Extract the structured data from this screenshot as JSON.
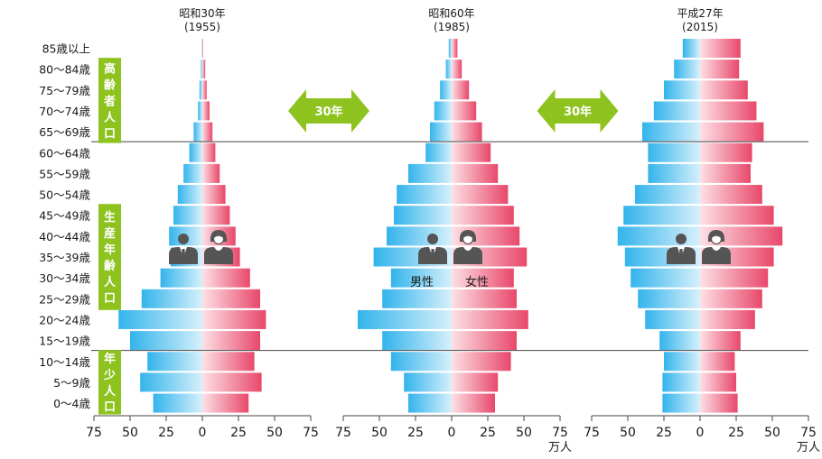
{
  "chart_data": {
    "type": "bar",
    "orientation": "horizontal-butterfly",
    "age_groups": [
      "85歳以上",
      "80〜84歳",
      "75〜79歳",
      "70〜74歳",
      "65〜69歳",
      "60〜64歳",
      "55〜59歳",
      "50〜54歳",
      "45〜49歳",
      "40〜44歳",
      "35〜39歳",
      "30〜34歳",
      "25〜29歳",
      "20〜24歳",
      "15〜19歳",
      "10〜14歳",
      "5〜9歳",
      "0〜4歳"
    ],
    "category_labels": [
      {
        "text": "高齢者人口",
        "from": 1,
        "to": 4
      },
      {
        "text": "生産年齢人口",
        "from": 8,
        "to": 12
      },
      {
        "text": "年少人口",
        "from": 15,
        "to": 17
      }
    ],
    "separator_after": [
      4,
      14
    ],
    "arrows": [
      {
        "label": "30年",
        "between": [
          0,
          1
        ]
      },
      {
        "label": "30年",
        "between": [
          1,
          2
        ]
      }
    ],
    "x_ticks": [
      "75",
      "50",
      "25",
      "0",
      "25",
      "50",
      "75"
    ],
    "unit_label": "万人",
    "unit_label_under": [
      1,
      2
    ],
    "xlim": [
      -75,
      75
    ],
    "colors": {
      "male": "#33b4ec",
      "female": "#e8486a",
      "category_box": "#8dc21f",
      "text": "#1a1a1a",
      "icon": "#555555"
    },
    "panels": [
      {
        "era": "昭和30年",
        "year": "(1955)",
        "male": [
          0.3,
          1,
          2,
          3,
          6,
          9,
          13,
          17,
          20,
          23,
          22,
          29,
          42,
          58,
          50,
          38,
          43,
          34
        ],
        "female": [
          0.5,
          2,
          3,
          5,
          7,
          9,
          12,
          16,
          19,
          23,
          26,
          33,
          40,
          44,
          40,
          36,
          41,
          32
        ],
        "male_label": "",
        "female_label": ""
      },
      {
        "era": "昭和60年",
        "year": "(1985)",
        "male": [
          2,
          4,
          8,
          12,
          15,
          18,
          30,
          38,
          40,
          45,
          54,
          42,
          48,
          65,
          48,
          42,
          33,
          30
        ],
        "female": [
          4,
          7,
          12,
          17,
          21,
          27,
          32,
          39,
          43,
          47,
          52,
          43,
          45,
          53,
          45,
          41,
          32,
          30
        ],
        "male_label": "男性",
        "female_label": "女性"
      },
      {
        "era": "平成27年",
        "year": "(2015)",
        "male": [
          12,
          18,
          25,
          32,
          40,
          36,
          36,
          45,
          53,
          57,
          52,
          48,
          43,
          38,
          28,
          25,
          26,
          26
        ],
        "female": [
          28,
          27,
          33,
          39,
          44,
          36,
          35,
          43,
          51,
          57,
          51,
          47,
          43,
          38,
          28,
          24,
          25,
          26
        ],
        "male_label": "",
        "female_label": ""
      }
    ]
  }
}
